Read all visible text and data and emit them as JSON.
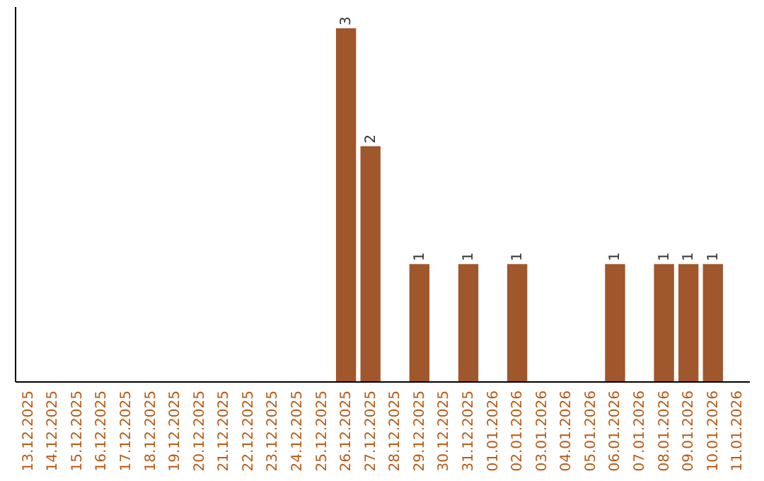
{
  "chart_data": {
    "type": "bar",
    "categories": [
      "13.12.2025",
      "14.12.2025",
      "15.12.2025",
      "16.12.2025",
      "17.12.2025",
      "18.12.2025",
      "19.12.2025",
      "20.12.2025",
      "21.12.2025",
      "22.12.2025",
      "23.12.2025",
      "24.12.2025",
      "25.12.2025",
      "26.12.2025",
      "27.12.2025",
      "28.12.2025",
      "29.12.2025",
      "30.12.2025",
      "31.12.2025",
      "01.01.2026",
      "02.01.2026",
      "03.01.2026",
      "04.01.2026",
      "05.01.2026",
      "06.01.2026",
      "07.01.2026",
      "08.01.2026",
      "09.01.2026",
      "10.01.2026",
      "11.01.2026"
    ],
    "values": [
      null,
      null,
      null,
      null,
      null,
      null,
      null,
      null,
      null,
      null,
      null,
      null,
      null,
      3,
      2,
      null,
      1,
      null,
      1,
      null,
      1,
      null,
      null,
      null,
      1,
      null,
      1,
      1,
      1,
      null
    ],
    "color": "#a0572b",
    "data_labels": true
  }
}
